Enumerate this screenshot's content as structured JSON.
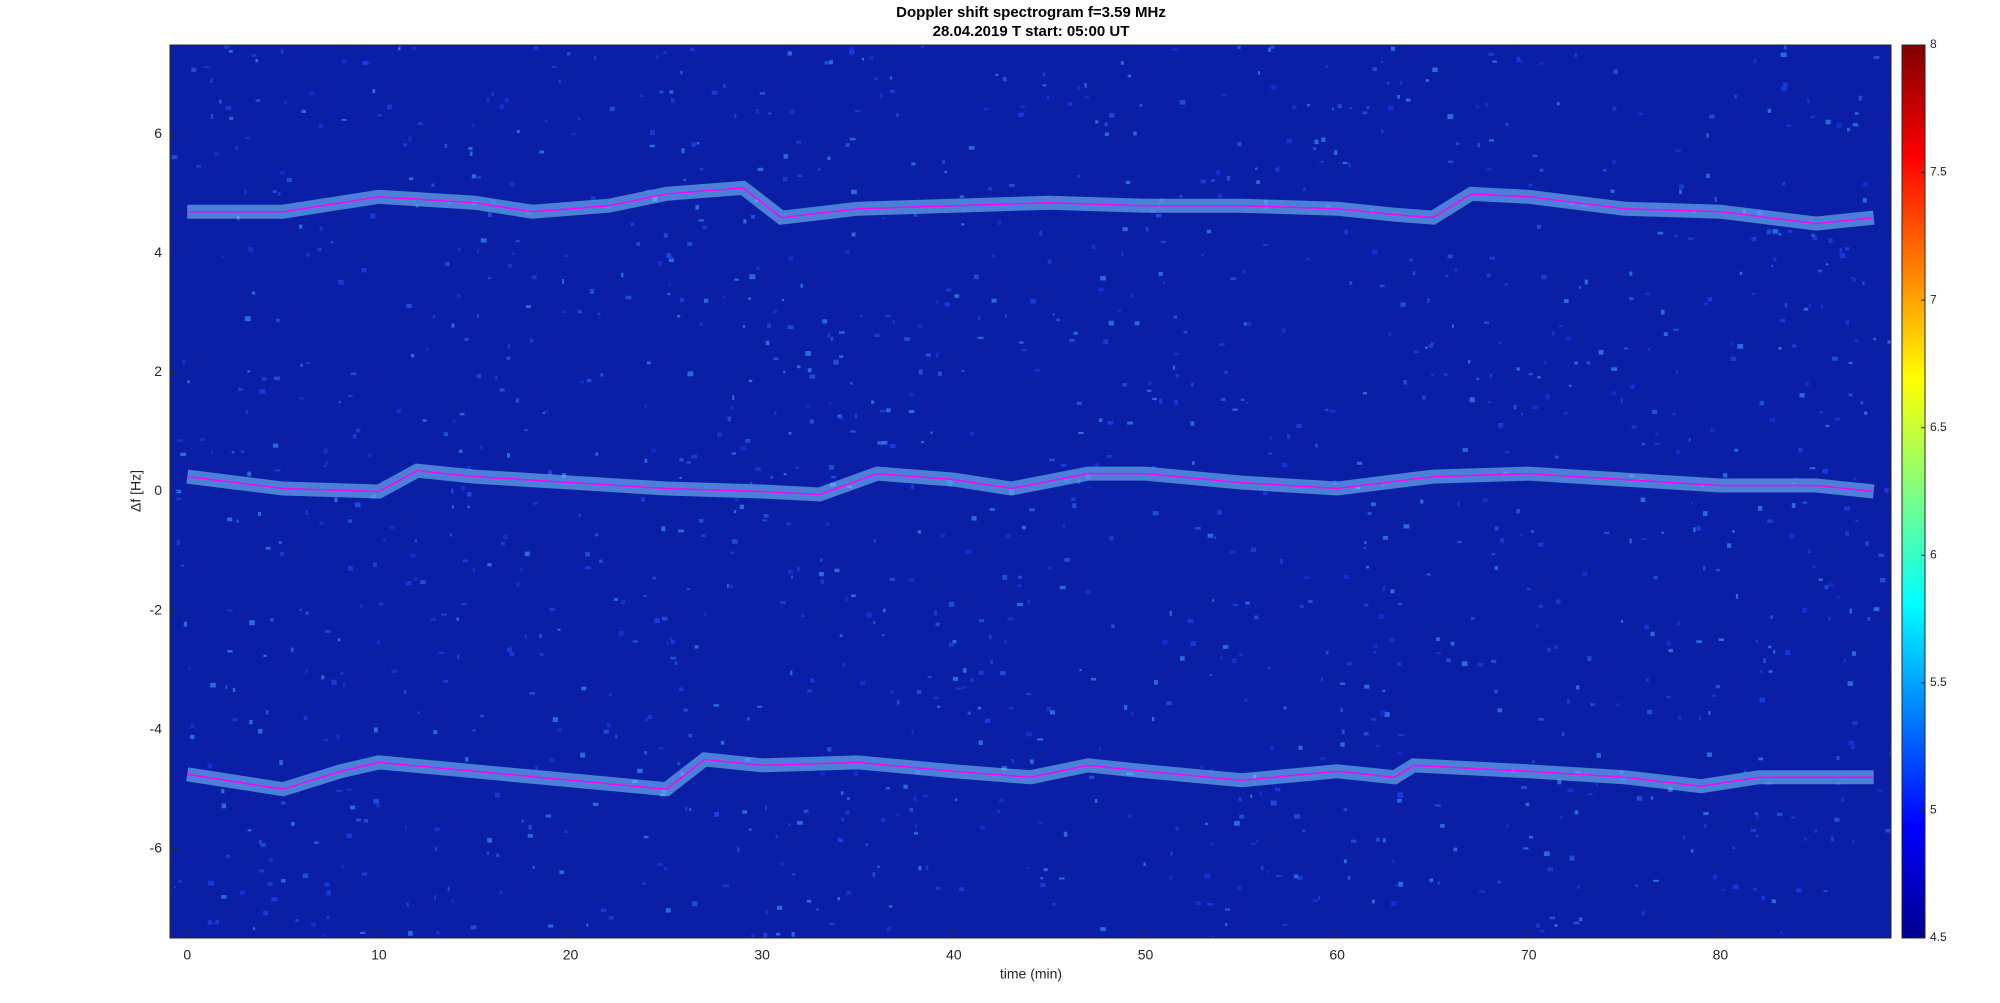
{
  "chart_data": {
    "type": "line",
    "title": "Doppler shift spectrogram f=3.59 MHz",
    "subtitle": "28.04.2019    T start: 05:00 UT",
    "x_label": "time (min)",
    "y_label": "Δf [Hz]",
    "xlim": [
      -0.9,
      88.9
    ],
    "xticks": [
      0,
      10,
      20,
      30,
      40,
      50,
      60,
      70,
      80
    ],
    "ylim": [
      -7.5,
      7.5
    ],
    "yticks": [
      -6,
      -4,
      -2,
      0,
      2,
      4,
      6
    ],
    "plot_background": "#0b1ea6",
    "glow_color": "#7fd4ff",
    "colormap": "jet",
    "clim": [
      4.5,
      8
    ],
    "cticks": [
      4.5,
      5,
      5.5,
      6,
      6.5,
      7,
      7.5,
      8
    ],
    "series": [
      {
        "color": "#ff00ff",
        "x": [
          0,
          5,
          8,
          10,
          15,
          18,
          22,
          25,
          29,
          31,
          35,
          40,
          45,
          50,
          55,
          60,
          63,
          65,
          67,
          70,
          75,
          80,
          85,
          88
        ],
        "values": [
          4.7,
          4.7,
          4.85,
          4.95,
          4.85,
          4.7,
          4.8,
          5.0,
          5.1,
          4.6,
          4.75,
          4.8,
          4.85,
          4.8,
          4.8,
          4.75,
          4.65,
          4.6,
          5.0,
          4.95,
          4.75,
          4.7,
          4.5,
          4.6
        ]
      },
      {
        "color": "#ff00ff",
        "x": [
          0,
          5,
          10,
          12,
          15,
          20,
          25,
          30,
          33,
          36,
          40,
          43,
          47,
          50,
          55,
          60,
          65,
          70,
          75,
          80,
          85,
          88
        ],
        "values": [
          0.25,
          0.05,
          0.0,
          0.35,
          0.25,
          0.15,
          0.05,
          0.0,
          -0.05,
          0.3,
          0.2,
          0.05,
          0.3,
          0.3,
          0.15,
          0.05,
          0.25,
          0.3,
          0.2,
          0.1,
          0.1,
          0.0
        ]
      },
      {
        "color": "#ff00ff",
        "x": [
          0,
          5,
          8,
          10,
          15,
          20,
          25,
          27,
          30,
          35,
          40,
          44,
          47,
          50,
          55,
          60,
          63,
          64,
          70,
          75,
          79,
          82,
          88
        ],
        "values": [
          -4.75,
          -5.0,
          -4.7,
          -4.55,
          -4.7,
          -4.85,
          -5.0,
          -4.5,
          -4.6,
          -4.55,
          -4.7,
          -4.8,
          -4.6,
          -4.7,
          -4.85,
          -4.7,
          -4.8,
          -4.6,
          -4.7,
          -4.8,
          -4.95,
          -4.8,
          -4.8
        ]
      }
    ]
  }
}
